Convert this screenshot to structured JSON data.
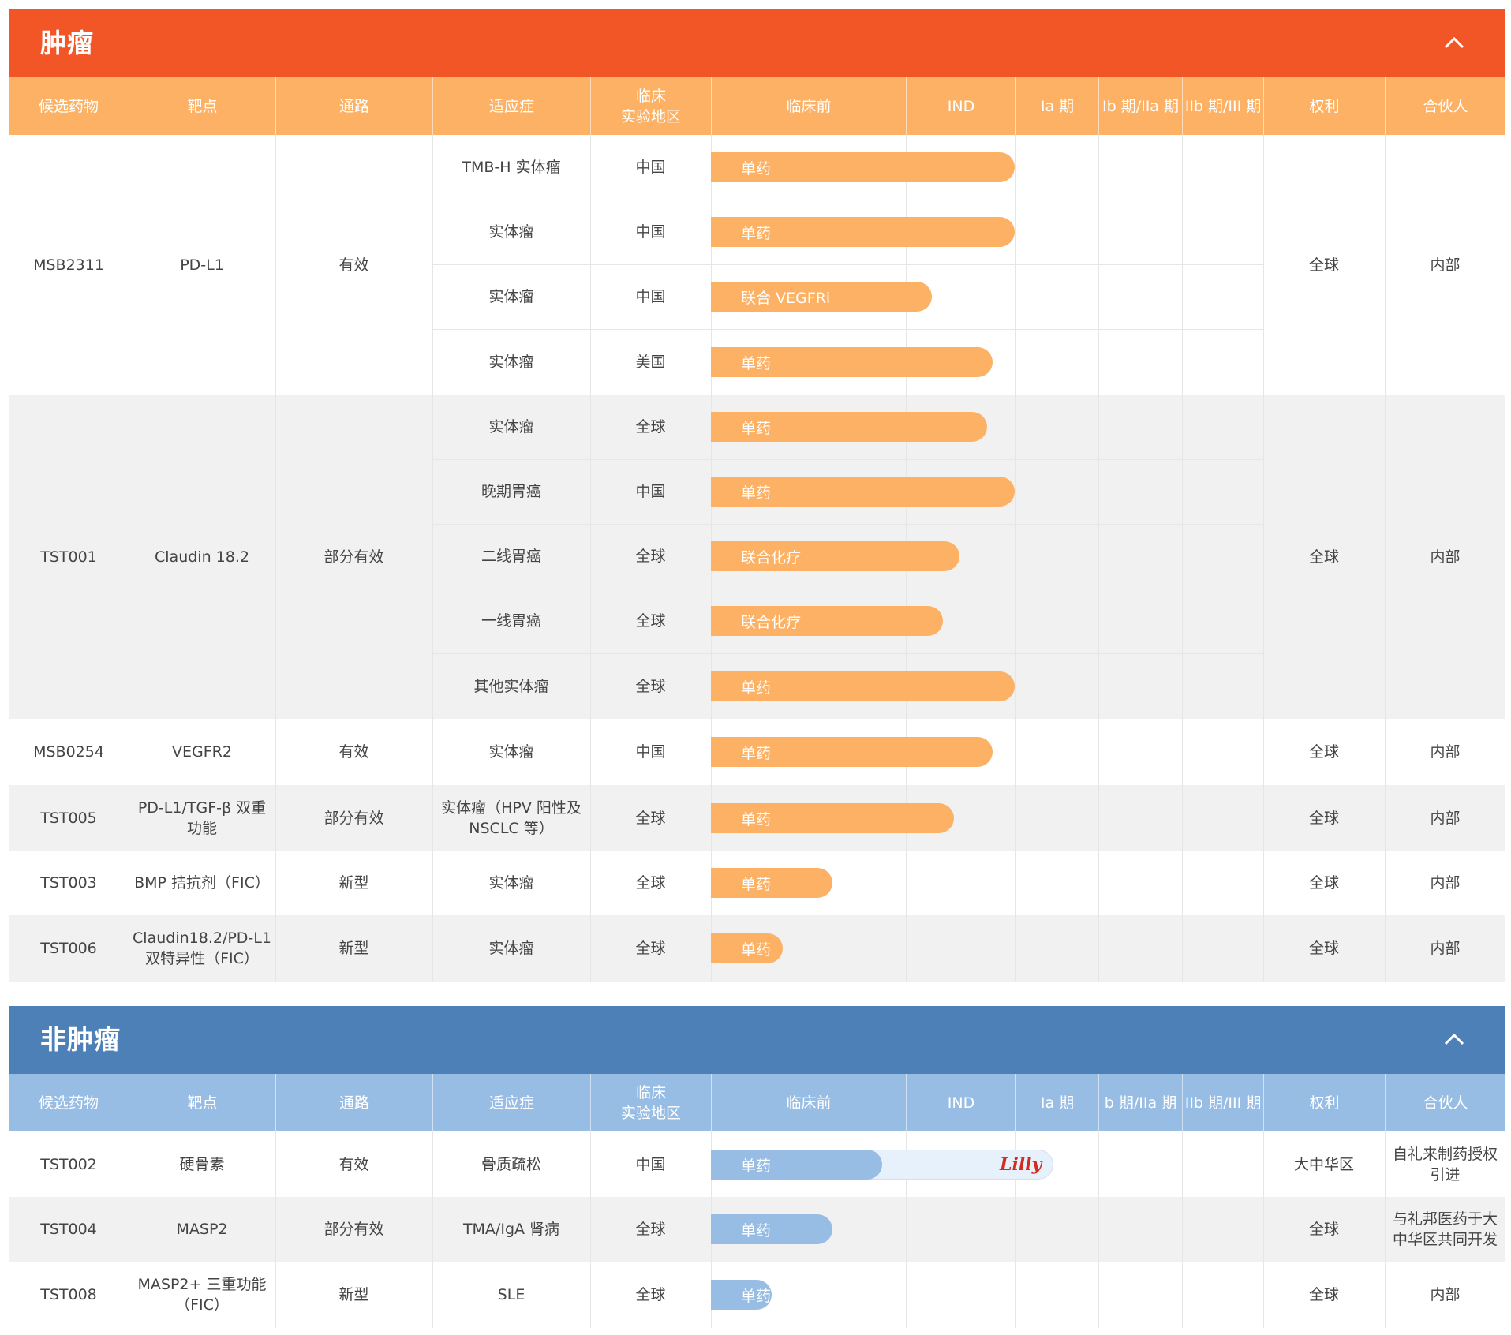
{
  "colors": {
    "tumor_accent": "#f25627",
    "tumor_header": "#fdb164",
    "tumor_bar": "#fdb164",
    "non_tumor_accent": "#4c80b6",
    "non_tumor_header": "#97bde4",
    "non_tumor_bar": "#97bde4",
    "zebra": "#f1f1f1"
  },
  "columns": [
    "候选药物",
    "靶点",
    "通路",
    "适应症",
    "临床\n实验地区",
    "临床前",
    "IND",
    "Ia 期",
    "Ib 期/IIa 期",
    "IIb 期/III 期",
    "权利",
    "合伙人"
  ],
  "columns_non_tumor": [
    "候选药物",
    "靶点",
    "通路",
    "适应症",
    "临床\n实验地区",
    "临床前",
    "IND",
    "Ia 期",
    "b 期/IIa 期",
    "IIb 期/III 期",
    "权利",
    "合伙人"
  ],
  "tumor": {
    "title": "肿瘤",
    "collapse_icon": "chevron-up-icon",
    "drugs": [
      {
        "name": "MSB2311",
        "target": "PD-L1",
        "pathway": "有效",
        "rights": "全球",
        "partner": "内部",
        "indications": [
          {
            "indication": "TMB-H 实体瘤",
            "region": "中国",
            "bar": "单药",
            "progress": 0.55
          },
          {
            "indication": "实体瘤",
            "region": "中国",
            "bar": "单药",
            "progress": 0.55
          },
          {
            "indication": "实体瘤",
            "region": "中国",
            "bar": "联合 VEGFRi",
            "progress": 0.4
          },
          {
            "indication": "实体瘤",
            "region": "美国",
            "bar": "单药",
            "progress": 0.51
          }
        ]
      },
      {
        "name": "TST001",
        "target": "Claudin 18.2",
        "pathway": "部分有效",
        "rights": "全球",
        "partner": "内部",
        "indications": [
          {
            "indication": "实体瘤",
            "region": "全球",
            "bar": "单药",
            "progress": 0.5
          },
          {
            "indication": "晚期胃癌",
            "region": "中国",
            "bar": "单药",
            "progress": 0.55
          },
          {
            "indication": "二线胃癌",
            "region": "全球",
            "bar": "联合化疗",
            "progress": 0.45
          },
          {
            "indication": "一线胃癌",
            "region": "全球",
            "bar": "联合化疗",
            "progress": 0.42
          },
          {
            "indication": "其他实体瘤",
            "region": "全球",
            "bar": "单药",
            "progress": 0.55
          }
        ]
      },
      {
        "name": "MSB0254",
        "target": "VEGFR2",
        "pathway": "有效",
        "rights": "全球",
        "partner": "内部",
        "indications": [
          {
            "indication": "实体瘤",
            "region": "中国",
            "bar": "单药",
            "progress": 0.51
          }
        ]
      },
      {
        "name": "TST005",
        "target": "PD-L1/TGF-β 双重功能",
        "pathway": "部分有效",
        "rights": "全球",
        "partner": "内部",
        "indications": [
          {
            "indication": "实体瘤（HPV 阳性及 NSCLC 等）",
            "region": "全球",
            "bar": "单药",
            "progress": 0.44
          }
        ]
      },
      {
        "name": "TST003",
        "target": "BMP 拮抗剂（FIC）",
        "pathway": "新型",
        "rights": "全球",
        "partner": "内部",
        "indications": [
          {
            "indication": "实体瘤",
            "region": "全球",
            "bar": "单药",
            "progress": 0.22
          }
        ]
      },
      {
        "name": "TST006",
        "target": "Claudin18.2/PD-L1 双特异性（FIC）",
        "pathway": "新型",
        "rights": "全球",
        "partner": "内部",
        "indications": [
          {
            "indication": "实体瘤",
            "region": "全球",
            "bar": "单药",
            "progress": 0.13
          }
        ]
      }
    ]
  },
  "non_tumor": {
    "title": "非肿瘤",
    "collapse_icon": "chevron-up-icon",
    "drugs": [
      {
        "name": "TST002",
        "target": "硬骨素",
        "pathway": "有效",
        "rights": "大中华区",
        "partner": "自礼来制药授权引进",
        "indications": [
          {
            "indication": "骨质疏松",
            "region": "中国",
            "bar": "单药",
            "progress": 0.31,
            "extended_progress": 0.62,
            "partner_logo": "Lilly"
          }
        ]
      },
      {
        "name": "TST004",
        "target": "MASP2",
        "pathway": "部分有效",
        "rights": "全球",
        "partner": "与礼邦医药于大中华区共同开发",
        "indications": [
          {
            "indication": "TMA/IgA 肾病",
            "region": "全球",
            "bar": "单药",
            "progress": 0.22
          }
        ]
      },
      {
        "name": "TST008",
        "target": "MASP2+ 三重功能（FIC）",
        "pathway": "新型",
        "rights": "全球",
        "partner": "内部",
        "indications": [
          {
            "indication": "SLE",
            "region": "全球",
            "bar": "单药",
            "progress": 0.11
          }
        ]
      }
    ]
  }
}
